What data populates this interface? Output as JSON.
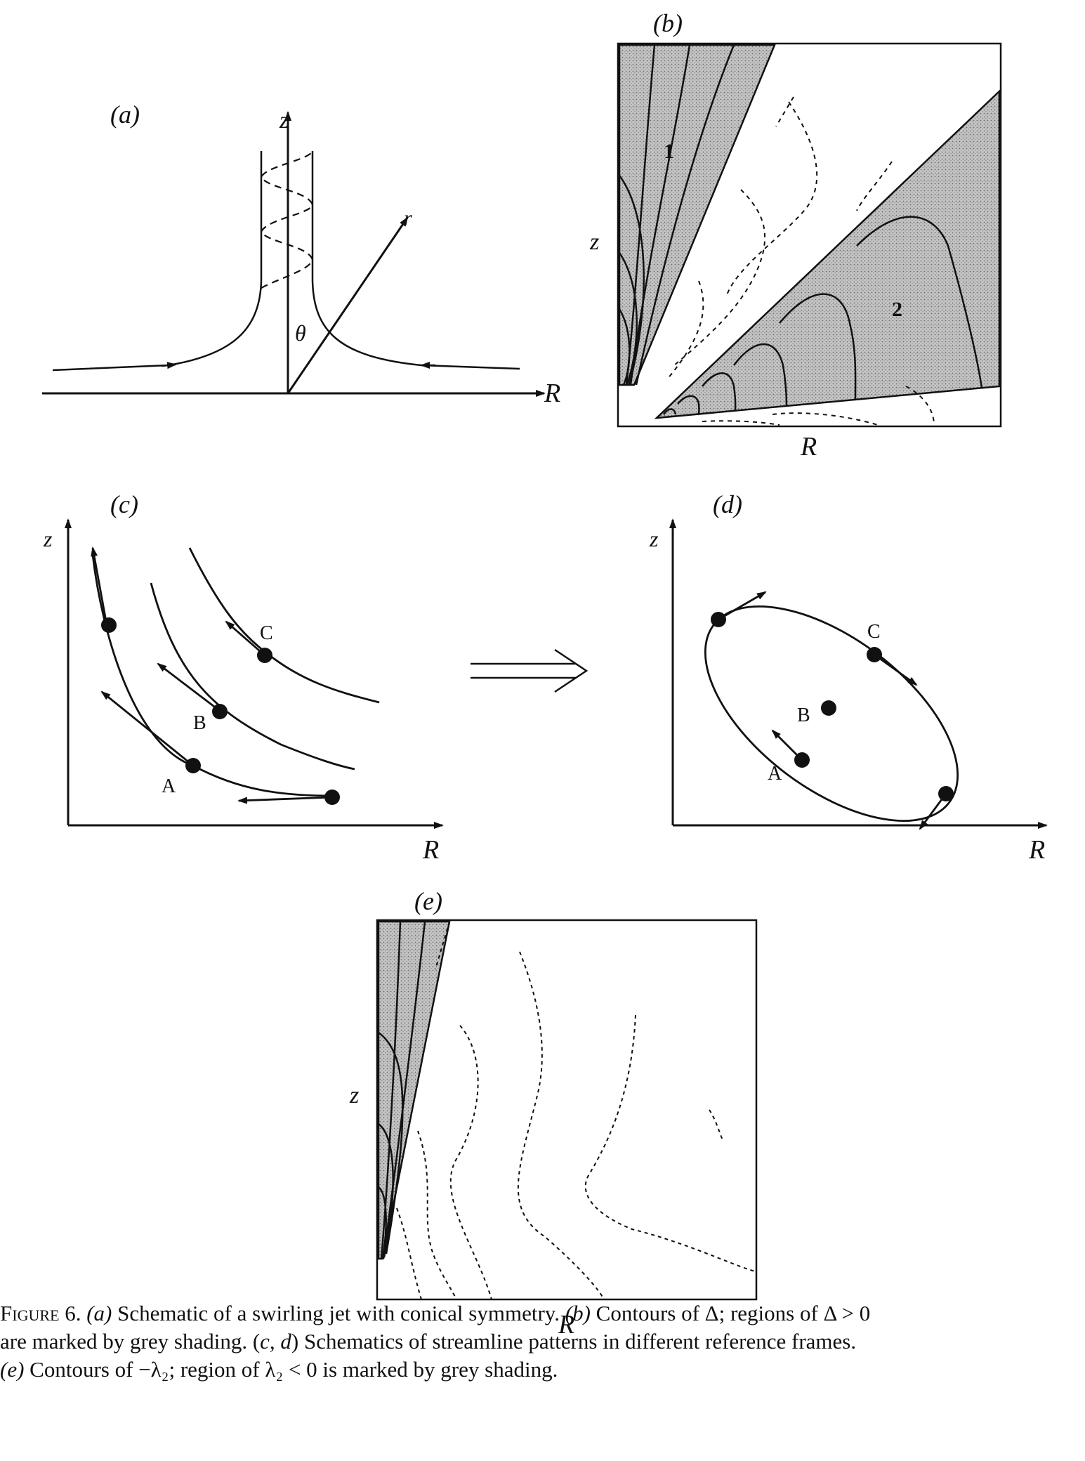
{
  "panels": {
    "a": {
      "tag": "(a)",
      "z_label": "z",
      "r_label": "r",
      "theta_label": "θ",
      "R_label": "R"
    },
    "b": {
      "tag": "(b)",
      "z_label": "z",
      "R_label": "R",
      "region_1": "1",
      "region_2": "2"
    },
    "c": {
      "tag": "(c)",
      "z_label": "z",
      "R_label": "R",
      "point_A": "A",
      "point_B": "B",
      "point_C": "C"
    },
    "d": {
      "tag": "(d)",
      "z_label": "z",
      "R_label": "R",
      "point_A": "A",
      "point_B": "B",
      "point_C": "C"
    },
    "e": {
      "tag": "(e)",
      "z_label": "z",
      "R_label": "R"
    }
  },
  "caption": {
    "label": "Figure 6.",
    "line1_a": "(a)",
    "line1_text1": " Schematic of a swirling jet with conical symmetry. ",
    "line1_b": "(b)",
    "line1_text2": " Contours of Δ; regions of Δ > 0",
    "line2_text1": "are marked by grey shading. (",
    "line2_cd": "c, d",
    "line2_text2": ") Schematics of streamline patterns in different reference frames.",
    "line3_e": "(e)",
    "line3_text": " Contours of −λ₂; region of λ₂ < 0 is marked by grey shading."
  },
  "colors": {
    "ink": "#111111",
    "shade": "#b9b9b9",
    "background": "#ffffff"
  }
}
